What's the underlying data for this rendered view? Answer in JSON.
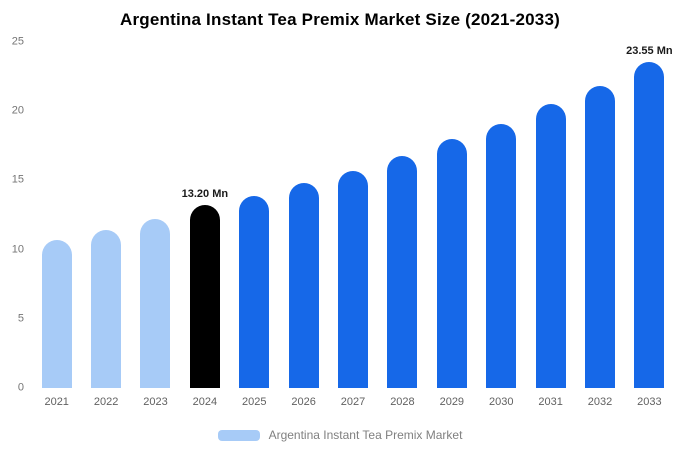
{
  "chart_data": {
    "type": "bar",
    "title": "Argentina Instant Tea Premix Market Size (2021-2033)",
    "categories": [
      "2021",
      "2022",
      "2023",
      "2024",
      "2025",
      "2026",
      "2027",
      "2028",
      "2029",
      "2030",
      "2031",
      "2032",
      "2033"
    ],
    "values": [
      10.7,
      11.4,
      12.2,
      13.2,
      13.9,
      14.8,
      15.7,
      16.8,
      18.0,
      19.1,
      20.5,
      21.8,
      23.55
    ],
    "unit": "Mn",
    "xlabel": "",
    "ylabel": "",
    "ylim": [
      0,
      25
    ],
    "yticks": [
      0,
      5,
      10,
      15,
      20,
      25
    ],
    "grid": false,
    "legend_position": "bottom",
    "bar_colors": [
      "#a7cbf7",
      "#a7cbf7",
      "#a7cbf7",
      "#000000",
      "#1668e8",
      "#1668e8",
      "#1668e8",
      "#1668e8",
      "#1668e8",
      "#1668e8",
      "#1668e8",
      "#1668e8",
      "#1668e8"
    ],
    "data_labels": [
      {
        "index": 3,
        "text": "13.20 Mn"
      },
      {
        "index": 12,
        "text": "23.55 Mn"
      }
    ]
  },
  "legend": {
    "label": "Argentina Instant Tea Premix Market",
    "swatch_color": "#a7cbf7"
  },
  "colors": {
    "historical_bar": "#a7cbf7",
    "highlight_bar": "#000000",
    "forecast_bar": "#1668e8",
    "axis_text": "#757575",
    "legend_text": "#808080"
  }
}
